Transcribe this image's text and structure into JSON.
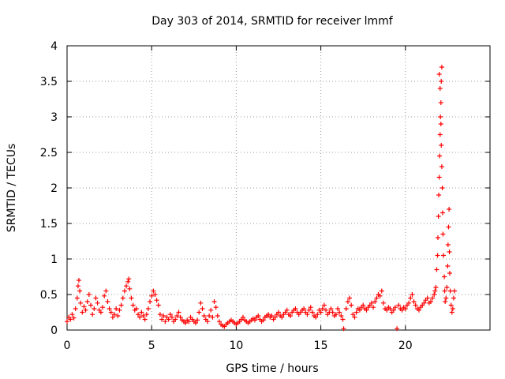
{
  "chart_data": {
    "type": "scatter",
    "title": "Day 303 of 2014, SRMTID for receiver lmmf",
    "xlabel": "GPS time / hours",
    "ylabel": "SRMTID / TECUs",
    "xlim": [
      0,
      25
    ],
    "ylim": [
      0,
      4
    ],
    "xticks": [
      0,
      5,
      10,
      15,
      20
    ],
    "yticks": [
      0,
      0.5,
      1,
      1.5,
      2,
      2.5,
      3,
      3.5,
      4
    ],
    "ytick_labels": [
      "0",
      "0.5",
      "1",
      "1.5",
      "2",
      "2.5",
      "3",
      "3.5",
      "4"
    ],
    "grid": true,
    "marker": "+",
    "color": "#ff0000",
    "series": [
      {
        "name": "SRMTID",
        "points": [
          [
            0.0,
            0.12
          ],
          [
            0.1,
            0.18
          ],
          [
            0.2,
            0.15
          ],
          [
            0.3,
            0.22
          ],
          [
            0.4,
            0.17
          ],
          [
            0.5,
            0.3
          ],
          [
            0.6,
            0.45
          ],
          [
            0.65,
            0.62
          ],
          [
            0.7,
            0.7
          ],
          [
            0.75,
            0.55
          ],
          [
            0.8,
            0.38
          ],
          [
            0.9,
            0.25
          ],
          [
            1.0,
            0.33
          ],
          [
            1.1,
            0.28
          ],
          [
            1.2,
            0.4
          ],
          [
            1.3,
            0.5
          ],
          [
            1.4,
            0.35
          ],
          [
            1.5,
            0.22
          ],
          [
            1.6,
            0.3
          ],
          [
            1.7,
            0.45
          ],
          [
            1.8,
            0.38
          ],
          [
            1.9,
            0.28
          ],
          [
            2.0,
            0.25
          ],
          [
            2.1,
            0.32
          ],
          [
            2.2,
            0.48
          ],
          [
            2.3,
            0.55
          ],
          [
            2.4,
            0.4
          ],
          [
            2.5,
            0.3
          ],
          [
            2.6,
            0.25
          ],
          [
            2.7,
            0.18
          ],
          [
            2.8,
            0.22
          ],
          [
            2.9,
            0.3
          ],
          [
            3.0,
            0.2
          ],
          [
            3.1,
            0.28
          ],
          [
            3.2,
            0.35
          ],
          [
            3.3,
            0.45
          ],
          [
            3.4,
            0.55
          ],
          [
            3.5,
            0.62
          ],
          [
            3.6,
            0.68
          ],
          [
            3.65,
            0.72
          ],
          [
            3.7,
            0.58
          ],
          [
            3.8,
            0.45
          ],
          [
            3.9,
            0.35
          ],
          [
            4.0,
            0.28
          ],
          [
            4.1,
            0.3
          ],
          [
            4.2,
            0.22
          ],
          [
            4.3,
            0.18
          ],
          [
            4.4,
            0.25
          ],
          [
            4.5,
            0.2
          ],
          [
            4.6,
            0.15
          ],
          [
            4.7,
            0.22
          ],
          [
            4.8,
            0.3
          ],
          [
            4.9,
            0.4
          ],
          [
            5.0,
            0.48
          ],
          [
            5.1,
            0.55
          ],
          [
            5.2,
            0.5
          ],
          [
            5.3,
            0.42
          ],
          [
            5.4,
            0.35
          ],
          [
            5.5,
            0.22
          ],
          [
            5.6,
            0.15
          ],
          [
            5.7,
            0.2
          ],
          [
            5.8,
            0.12
          ],
          [
            5.9,
            0.18
          ],
          [
            6.0,
            0.15
          ],
          [
            6.1,
            0.22
          ],
          [
            6.2,
            0.18
          ],
          [
            6.3,
            0.12
          ],
          [
            6.4,
            0.15
          ],
          [
            6.5,
            0.2
          ],
          [
            6.6,
            0.25
          ],
          [
            6.7,
            0.18
          ],
          [
            6.8,
            0.14
          ],
          [
            6.9,
            0.12
          ],
          [
            7.0,
            0.1
          ],
          [
            7.1,
            0.14
          ],
          [
            7.2,
            0.12
          ],
          [
            7.3,
            0.18
          ],
          [
            7.4,
            0.15
          ],
          [
            7.5,
            0.12
          ],
          [
            7.6,
            0.1
          ],
          [
            7.7,
            0.14
          ],
          [
            7.8,
            0.25
          ],
          [
            7.9,
            0.38
          ],
          [
            8.0,
            0.3
          ],
          [
            8.1,
            0.2
          ],
          [
            8.2,
            0.15
          ],
          [
            8.3,
            0.12
          ],
          [
            8.4,
            0.2
          ],
          [
            8.5,
            0.28
          ],
          [
            8.6,
            0.18
          ],
          [
            8.7,
            0.4
          ],
          [
            8.8,
            0.32
          ],
          [
            8.9,
            0.2
          ],
          [
            9.0,
            0.12
          ],
          [
            9.1,
            0.08
          ],
          [
            9.2,
            0.06
          ],
          [
            9.3,
            0.05
          ],
          [
            9.4,
            0.08
          ],
          [
            9.5,
            0.1
          ],
          [
            9.6,
            0.12
          ],
          [
            9.7,
            0.14
          ],
          [
            9.8,
            0.12
          ],
          [
            9.9,
            0.1
          ],
          [
            10.0,
            0.08
          ],
          [
            10.1,
            0.1
          ],
          [
            10.2,
            0.12
          ],
          [
            10.3,
            0.15
          ],
          [
            10.4,
            0.18
          ],
          [
            10.5,
            0.14
          ],
          [
            10.6,
            0.12
          ],
          [
            10.7,
            0.1
          ],
          [
            10.8,
            0.12
          ],
          [
            10.9,
            0.14
          ],
          [
            11.0,
            0.16
          ],
          [
            11.1,
            0.14
          ],
          [
            11.2,
            0.18
          ],
          [
            11.3,
            0.2
          ],
          [
            11.4,
            0.15
          ],
          [
            11.5,
            0.12
          ],
          [
            11.6,
            0.14
          ],
          [
            11.7,
            0.18
          ],
          [
            11.8,
            0.2
          ],
          [
            11.9,
            0.22
          ],
          [
            12.0,
            0.18
          ],
          [
            12.1,
            0.2
          ],
          [
            12.2,
            0.15
          ],
          [
            12.3,
            0.18
          ],
          [
            12.4,
            0.22
          ],
          [
            12.5,
            0.25
          ],
          [
            12.6,
            0.2
          ],
          [
            12.7,
            0.18
          ],
          [
            12.8,
            0.22
          ],
          [
            12.9,
            0.25
          ],
          [
            13.0,
            0.28
          ],
          [
            13.1,
            0.22
          ],
          [
            13.2,
            0.2
          ],
          [
            13.3,
            0.25
          ],
          [
            13.4,
            0.28
          ],
          [
            13.5,
            0.3
          ],
          [
            13.6,
            0.25
          ],
          [
            13.7,
            0.22
          ],
          [
            13.8,
            0.25
          ],
          [
            13.9,
            0.28
          ],
          [
            14.0,
            0.3
          ],
          [
            14.1,
            0.25
          ],
          [
            14.2,
            0.22
          ],
          [
            14.3,
            0.28
          ],
          [
            14.4,
            0.32
          ],
          [
            14.5,
            0.25
          ],
          [
            14.6,
            0.2
          ],
          [
            14.7,
            0.18
          ],
          [
            14.8,
            0.22
          ],
          [
            14.9,
            0.28
          ],
          [
            15.0,
            0.25
          ],
          [
            15.1,
            0.3
          ],
          [
            15.2,
            0.35
          ],
          [
            15.3,
            0.28
          ],
          [
            15.4,
            0.22
          ],
          [
            15.5,
            0.25
          ],
          [
            15.6,
            0.3
          ],
          [
            15.7,
            0.25
          ],
          [
            15.8,
            0.2
          ],
          [
            15.9,
            0.22
          ],
          [
            16.0,
            0.3
          ],
          [
            16.1,
            0.25
          ],
          [
            16.2,
            0.2
          ],
          [
            16.3,
            0.15
          ],
          [
            16.35,
            0.02
          ],
          [
            16.5,
            0.3
          ],
          [
            16.6,
            0.4
          ],
          [
            16.7,
            0.45
          ],
          [
            16.8,
            0.35
          ],
          [
            16.9,
            0.22
          ],
          [
            17.0,
            0.18
          ],
          [
            17.1,
            0.25
          ],
          [
            17.2,
            0.3
          ],
          [
            17.3,
            0.28
          ],
          [
            17.4,
            0.32
          ],
          [
            17.5,
            0.35
          ],
          [
            17.6,
            0.3
          ],
          [
            17.7,
            0.28
          ],
          [
            17.8,
            0.32
          ],
          [
            17.9,
            0.35
          ],
          [
            18.0,
            0.38
          ],
          [
            18.1,
            0.32
          ],
          [
            18.2,
            0.4
          ],
          [
            18.3,
            0.45
          ],
          [
            18.4,
            0.5
          ],
          [
            18.5,
            0.48
          ],
          [
            18.6,
            0.55
          ],
          [
            18.7,
            0.38
          ],
          [
            18.8,
            0.3
          ],
          [
            18.9,
            0.28
          ],
          [
            19.0,
            0.32
          ],
          [
            19.1,
            0.3
          ],
          [
            19.2,
            0.25
          ],
          [
            19.3,
            0.28
          ],
          [
            19.4,
            0.32
          ],
          [
            19.5,
            0.02
          ],
          [
            19.6,
            0.35
          ],
          [
            19.7,
            0.3
          ],
          [
            19.8,
            0.28
          ],
          [
            19.9,
            0.32
          ],
          [
            20.0,
            0.3
          ],
          [
            20.1,
            0.35
          ],
          [
            20.2,
            0.38
          ],
          [
            20.3,
            0.45
          ],
          [
            20.4,
            0.5
          ],
          [
            20.5,
            0.4
          ],
          [
            20.6,
            0.35
          ],
          [
            20.7,
            0.3
          ],
          [
            20.8,
            0.28
          ],
          [
            20.9,
            0.32
          ],
          [
            21.0,
            0.35
          ],
          [
            21.1,
            0.38
          ],
          [
            21.2,
            0.42
          ],
          [
            21.3,
            0.45
          ],
          [
            21.4,
            0.38
          ],
          [
            21.5,
            0.4
          ],
          [
            21.6,
            0.45
          ],
          [
            21.7,
            0.5
          ],
          [
            21.75,
            0.55
          ],
          [
            21.8,
            0.6
          ],
          [
            21.85,
            0.85
          ],
          [
            21.9,
            1.05
          ],
          [
            21.92,
            1.3
          ],
          [
            21.95,
            1.6
          ],
          [
            21.97,
            1.9
          ],
          [
            22.0,
            2.15
          ],
          [
            22.02,
            2.45
          ],
          [
            22.05,
            2.75
          ],
          [
            22.07,
            3.0
          ],
          [
            22.1,
            3.2
          ],
          [
            22.12,
            3.5
          ],
          [
            22.15,
            3.7
          ],
          [
            22.0,
            3.6
          ],
          [
            22.05,
            3.4
          ],
          [
            22.1,
            2.9
          ],
          [
            22.12,
            2.6
          ],
          [
            22.15,
            2.3
          ],
          [
            22.18,
            2.0
          ],
          [
            22.2,
            1.65
          ],
          [
            22.22,
            1.35
          ],
          [
            22.25,
            1.05
          ],
          [
            22.3,
            0.75
          ],
          [
            22.32,
            0.55
          ],
          [
            22.35,
            0.4
          ],
          [
            22.4,
            0.45
          ],
          [
            22.45,
            0.6
          ],
          [
            22.5,
            0.9
          ],
          [
            22.52,
            1.2
          ],
          [
            22.55,
            1.45
          ],
          [
            22.58,
            1.7
          ],
          [
            22.6,
            1.1
          ],
          [
            22.62,
            0.8
          ],
          [
            22.65,
            0.55
          ],
          [
            22.7,
            0.35
          ],
          [
            22.75,
            0.25
          ],
          [
            22.8,
            0.3
          ],
          [
            22.85,
            0.45
          ],
          [
            22.9,
            0.55
          ]
        ]
      }
    ]
  }
}
